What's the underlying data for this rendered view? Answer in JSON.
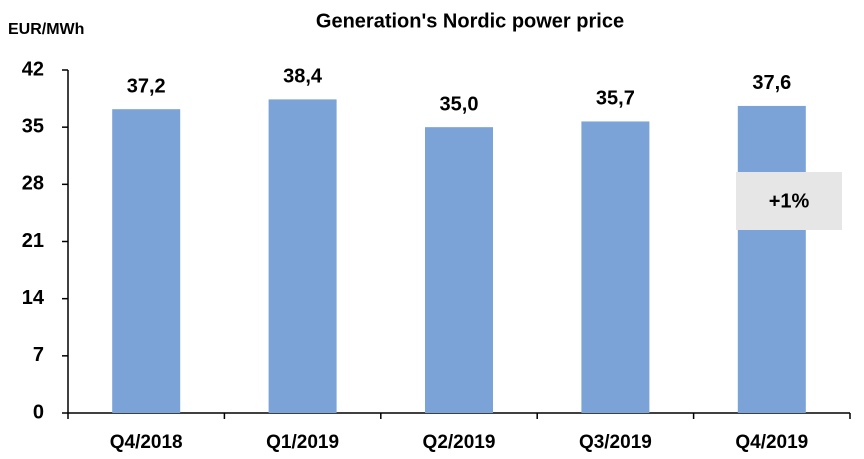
{
  "chart_data": {
    "type": "bar",
    "title": "Generation's Nordic power price",
    "y_label": "EUR/MWh",
    "categories": [
      "Q4/2018",
      "Q1/2019",
      "Q2/2019",
      "Q3/2019",
      "Q4/2019"
    ],
    "values": [
      37.2,
      38.4,
      35.0,
      35.7,
      37.6
    ],
    "value_labels": [
      "37,2",
      "38,4",
      "35,0",
      "35,7",
      "37,6"
    ],
    "color": "#7ba3d8",
    "ylim": [
      0,
      42
    ],
    "yticks": [
      0,
      7,
      14,
      21,
      28,
      35,
      42
    ],
    "grid": false,
    "annotation": "+1%"
  }
}
